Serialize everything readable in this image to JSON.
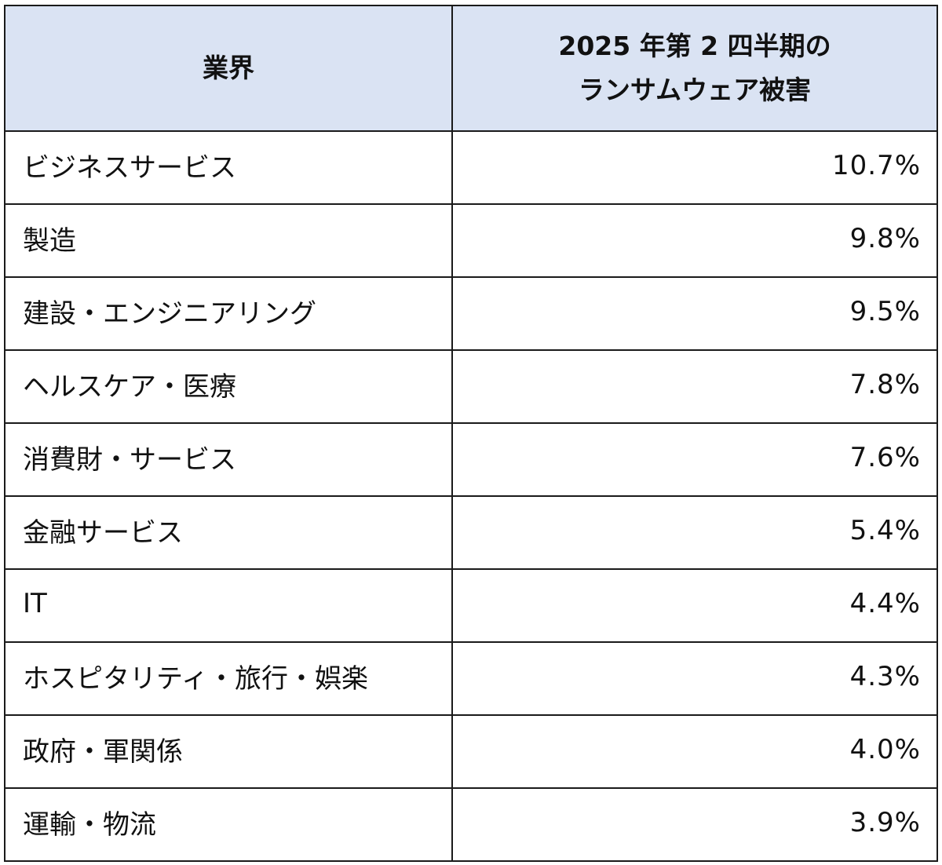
{
  "header": {
    "industry_label": "業界",
    "value_label_line1": "2025 年第 2 四半期の",
    "value_label_line2": "ランサムウェア被害"
  },
  "rows": [
    {
      "industry": "ビジネスサービス",
      "share": "10.7%"
    },
    {
      "industry": "製造",
      "share": "9.8%"
    },
    {
      "industry": "建設・エンジニアリング",
      "share": "9.5%"
    },
    {
      "industry": "ヘルスケア・医療",
      "share": "7.8%"
    },
    {
      "industry": "消費財・サービス",
      "share": "7.6%"
    },
    {
      "industry": "金融サービス",
      "share": "5.4%"
    },
    {
      "industry": "IT",
      "share": "4.4%"
    },
    {
      "industry": "ホスピタリティ・旅行・娯楽",
      "share": "4.3%"
    },
    {
      "industry": "政府・軍関係",
      "share": "4.0%"
    },
    {
      "industry": "運輸・物流",
      "share": "3.9%"
    }
  ],
  "colors": {
    "header_background": "#dae3f3",
    "border": "#1a1a1a"
  }
}
